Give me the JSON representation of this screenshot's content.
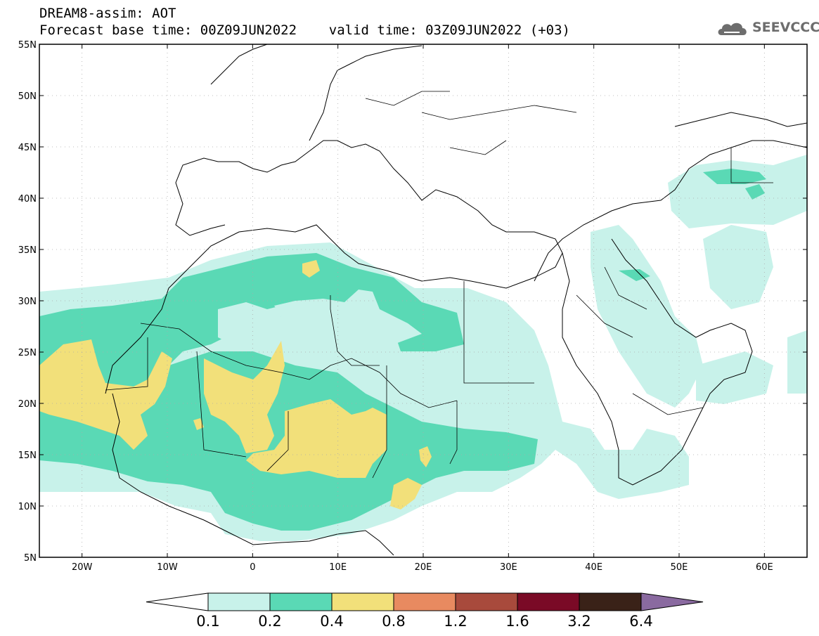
{
  "header": {
    "line1": "DREAM8-assim: AOT",
    "line2": "Forecast base time: 00Z09JUN2022    valid time: 03Z09JUN2022 (+03)",
    "logo_text": "SEEVCCC"
  },
  "map": {
    "lon_range": [
      -25,
      65
    ],
    "lat_range": [
      5,
      55
    ],
    "lat_labels": [
      "5N",
      "10N",
      "15N",
      "20N",
      "25N",
      "30N",
      "35N",
      "40N",
      "45N",
      "50N",
      "55N"
    ],
    "lat_values": [
      5,
      10,
      15,
      20,
      25,
      30,
      35,
      40,
      45,
      50,
      55
    ],
    "lon_labels": [
      "20W",
      "10W",
      "0",
      "10E",
      "20E",
      "30E",
      "40E",
      "50E",
      "60E"
    ],
    "lon_values": [
      -20,
      -10,
      0,
      10,
      20,
      30,
      40,
      50,
      60
    ],
    "grid": true
  },
  "colorbar": {
    "labels": [
      "0.1",
      "0.2",
      "0.4",
      "0.8",
      "1.2",
      "1.6",
      "3.2",
      "6.4"
    ],
    "colors": [
      "#c8f2ea",
      "#5ad9b5",
      "#f2e07a",
      "#e88a60",
      "#a84a3c",
      "#7a0a26",
      "#3a2218",
      "#8a6aa0"
    ]
  },
  "icons": {
    "logo": "cloud-logo-icon"
  }
}
